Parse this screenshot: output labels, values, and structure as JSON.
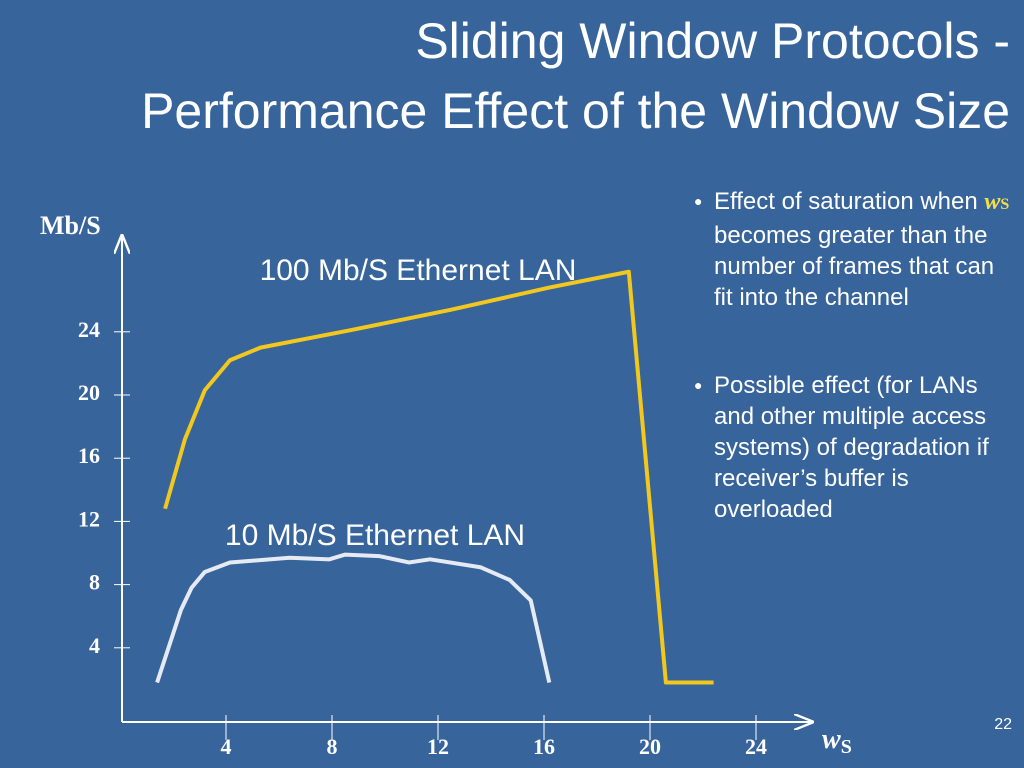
{
  "title": [
    "Sliding Window Protocols -",
    "Performance Effect of the Window Size"
  ],
  "chart_data": {
    "type": "line",
    "y_label": "Mb/S",
    "x_label": {
      "text": "w",
      "subscript": "S"
    },
    "xlim": [
      0,
      26
    ],
    "ylim": [
      0,
      30
    ],
    "xticks": [
      4,
      8,
      12,
      16,
      20,
      24
    ],
    "yticks": [
      4,
      8,
      12,
      16,
      20,
      24
    ],
    "series": [
      {
        "name": "100 Mb/S Ethernet LAN",
        "color": "#f2c81e",
        "x": [
          1.7,
          2.45,
          3.2,
          4.15,
          5.3,
          8.7,
          12.5,
          16.2,
          19.2,
          20.6,
          22.4
        ],
        "values": [
          12.8,
          17.2,
          20.3,
          22.2,
          23.0,
          24.1,
          25.4,
          26.8,
          27.8,
          1.8,
          1.8
        ]
      },
      {
        "name": "10 Mb/S Ethernet LAN",
        "color": "#e6ebf3",
        "x": [
          1.4,
          2.3,
          2.7,
          3.2,
          4.15,
          6.4,
          7.9,
          8.5,
          9.8,
          10.9,
          11.7,
          13.6,
          14.7,
          15.5,
          16.2
        ],
        "values": [
          1.8,
          6.4,
          7.8,
          8.8,
          9.4,
          9.7,
          9.6,
          9.9,
          9.8,
          9.4,
          9.6,
          9.1,
          8.3,
          7.0,
          1.8
        ]
      }
    ]
  },
  "bullets": [
    {
      "before": "Effect of saturation when ",
      "var": "w",
      "sub": "S",
      "after": " becomes greater than the number of frames that can fit into the channel"
    },
    {
      "text": "Possible effect (for LANs and other multiple access systems) of degradation if receiver’s buffer is overloaded"
    }
  ],
  "page_number": "22"
}
